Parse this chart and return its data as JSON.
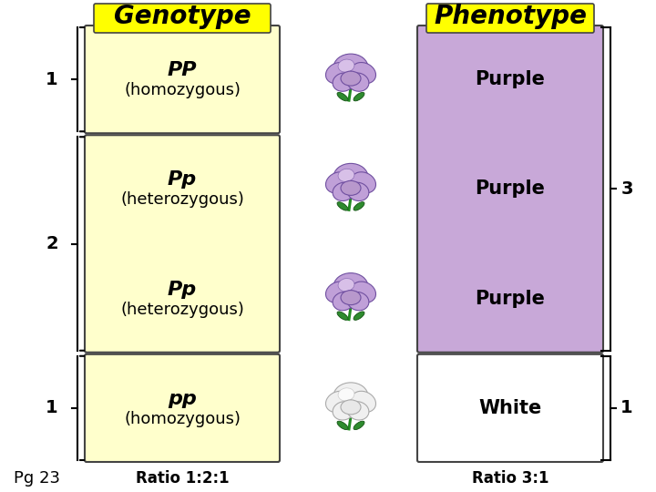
{
  "title_genotype": "Genotype",
  "title_phenotype": "Phenotype",
  "title_bg": "#FFFF00",
  "title_fontsize": 20,
  "bg_color": "#FFFFFF",
  "genotype_box_color": "#FFFFCC",
  "phenotype_purple_color": "#C8A8D8",
  "phenotype_white_color": "#FFFFFF",
  "box_edge_color": "#444444",
  "rows": [
    {
      "genotype_text1": "PP",
      "genotype_text2": "(homozygous)",
      "phenotype_text": "Purple",
      "phenotype_bg": "#C8A8D8",
      "flower": "purple"
    },
    {
      "genotype_text1": "Pp",
      "genotype_text2": "(heterozygous)",
      "phenotype_text": "Purple",
      "phenotype_bg": "#C8A8D8",
      "flower": "purple"
    },
    {
      "genotype_text1": "Pp",
      "genotype_text2": "(heterozygous)",
      "phenotype_text": "Purple",
      "phenotype_bg": "#C8A8D8",
      "flower": "purple"
    },
    {
      "genotype_text1": "pp",
      "genotype_text2": "(homozygous)",
      "phenotype_text": "White",
      "phenotype_bg": "#FFFFFF",
      "flower": "white"
    }
  ],
  "bottom_left_label": "Pg 23",
  "bottom_genotype_ratio": "Ratio 1:2:1",
  "bottom_phenotype_ratio": "Ratio 3:1"
}
